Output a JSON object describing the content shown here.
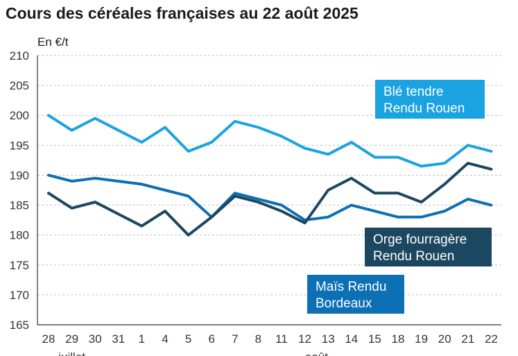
{
  "chart_data": {
    "type": "line",
    "title": "Cours des céréales françaises au 22 août 2025",
    "ylabel": "En €/t",
    "ylim": [
      165,
      210
    ],
    "yticks": [
      165,
      170,
      175,
      180,
      185,
      190,
      195,
      200,
      205,
      210
    ],
    "categories": [
      "28",
      "29",
      "30",
      "31",
      "1",
      "4",
      "5",
      "6",
      "7",
      "8",
      "11",
      "12",
      "13",
      "14",
      "15",
      "18",
      "19",
      "20",
      "21",
      "22"
    ],
    "month_labels": [
      {
        "text": "juillet",
        "at_index": 1
      },
      {
        "text": "août",
        "at_index": 11.5
      }
    ],
    "grid": true,
    "series": [
      {
        "name": "Blé tendre Rendu Rouen",
        "name_lines": [
          "Blé tendre",
          "Rendu Rouen"
        ],
        "color": "#1aa3e0",
        "values": [
          200,
          197.5,
          199.5,
          197.5,
          195.5,
          198,
          194,
          195.5,
          199,
          198,
          196.5,
          194.5,
          193.5,
          195.5,
          193,
          193,
          191.5,
          192,
          195,
          194
        ]
      },
      {
        "name": "Orge fourragère Rendu Rouen",
        "name_lines": [
          "Orge fourragère",
          "Rendu Rouen"
        ],
        "color": "#1c4760",
        "values": [
          187,
          184.5,
          185.5,
          183.5,
          181.5,
          184,
          180,
          183,
          186.5,
          185.5,
          184,
          182,
          187.5,
          189.5,
          187,
          187,
          185.5,
          188.5,
          192,
          191
        ]
      },
      {
        "name": "Maïs Rendu Bordeaux",
        "name_lines": [
          "Maïs Rendu",
          "Bordeaux"
        ],
        "color": "#0d6fb4",
        "values": [
          190,
          189,
          189.5,
          189,
          188.5,
          187.5,
          186.5,
          183,
          187,
          186,
          185,
          182.5,
          183,
          185,
          184,
          183,
          183,
          184,
          186,
          185
        ]
      }
    ]
  }
}
